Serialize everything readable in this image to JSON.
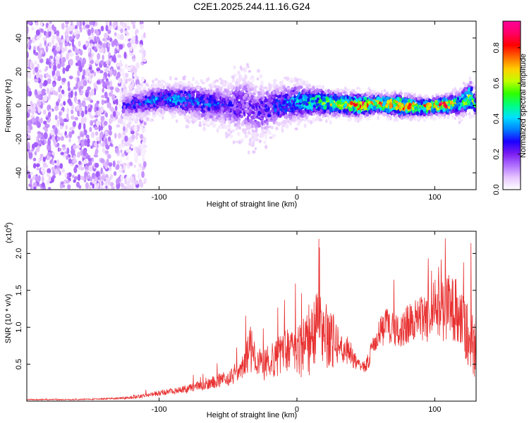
{
  "figure": {
    "title": "C2E1.2025.244.11.16.G24"
  },
  "chart_data": [
    {
      "type": "heatmap",
      "panel": "spectrogram",
      "xlabel": "Height of straight line (km)",
      "ylabel": "Frequency (Hz)",
      "xlim": [
        -196,
        130
      ],
      "ylim": [
        -50,
        50
      ],
      "xticks": [
        -100,
        0,
        100
      ],
      "xtick_labels": [
        "-100",
        "0",
        "100"
      ],
      "yticks": [
        -40,
        -20,
        0,
        20,
        40
      ],
      "ytick_labels": [
        "-40",
        "-20",
        "0",
        "20",
        "40"
      ],
      "colorbar": {
        "label": "Normalized spectral amplitude",
        "range": [
          0,
          0.95
        ],
        "ticks": [
          0,
          0.2,
          0.4,
          0.6,
          0.8
        ],
        "tick_labels": [
          "0.0",
          "0.2",
          "0.4",
          "0.6",
          "0.8"
        ],
        "colors": [
          "#ffffff",
          "#e6c6ff",
          "#b070ff",
          "#7a1cf0",
          "#1a00ff",
          "#0080ff",
          "#00e0ff",
          "#00ff80",
          "#30ff00",
          "#c0ff00",
          "#ffd000",
          "#ff6a00",
          "#ff0000",
          "#ff0066",
          "#ff0099"
        ]
      },
      "noise_region": [
        -196,
        -118
      ],
      "signal_band": [
        {
          "x": -125,
          "center": 0,
          "halfwidth": 5,
          "amp": 0.25
        },
        {
          "x": -110,
          "center": 2,
          "halfwidth": 6,
          "amp": 0.3
        },
        {
          "x": -95,
          "center": 4,
          "halfwidth": 6,
          "amp": 0.35
        },
        {
          "x": -80,
          "center": 3,
          "halfwidth": 7,
          "amp": 0.35
        },
        {
          "x": -65,
          "center": 1,
          "halfwidth": 8,
          "amp": 0.3
        },
        {
          "x": -50,
          "center": 0,
          "halfwidth": 9,
          "amp": 0.25
        },
        {
          "x": -38,
          "center": 0,
          "halfwidth": 14,
          "amp": 0.2
        },
        {
          "x": -30,
          "center": -4,
          "halfwidth": 12,
          "amp": 0.22
        },
        {
          "x": -15,
          "center": 0,
          "halfwidth": 9,
          "amp": 0.3
        },
        {
          "x": 0,
          "center": 2,
          "halfwidth": 8,
          "amp": 0.4
        },
        {
          "x": 15,
          "center": 2,
          "halfwidth": 6,
          "amp": 0.5
        },
        {
          "x": 30,
          "center": 1,
          "halfwidth": 5,
          "amp": 0.6
        },
        {
          "x": 45,
          "center": 0,
          "halfwidth": 5,
          "amp": 0.8
        },
        {
          "x": 60,
          "center": 1,
          "halfwidth": 4,
          "amp": 0.7
        },
        {
          "x": 75,
          "center": 0,
          "halfwidth": 5,
          "amp": 0.75
        },
        {
          "x": 90,
          "center": -1,
          "halfwidth": 4,
          "amp": 0.65
        },
        {
          "x": 105,
          "center": 0,
          "halfwidth": 4,
          "amp": 0.8
        },
        {
          "x": 118,
          "center": 1,
          "halfwidth": 5,
          "amp": 0.55
        },
        {
          "x": 126,
          "center": 5,
          "halfwidth": 7,
          "amp": 0.6
        },
        {
          "x": 130,
          "center": 0,
          "halfwidth": 5,
          "amp": 0.4
        }
      ]
    },
    {
      "type": "line",
      "panel": "snr",
      "xlabel": "Height of straight line (km)",
      "ylabel": "SNR (10 * v/v)",
      "yscale_label": "(x10",
      "yscale_exponent": "4",
      "yscale_suffix": ")",
      "xlim": [
        -196,
        130
      ],
      "ylim": [
        0,
        2.3
      ],
      "xticks": [
        -100,
        0,
        100
      ],
      "xtick_labels": [
        "-100",
        "0",
        "100"
      ],
      "yticks": [
        0.5,
        1.0,
        1.5,
        2.0
      ],
      "ytick_labels": [
        "0.5",
        "1.0",
        "1.5",
        "2.0"
      ],
      "color": "#e83030",
      "series": [
        {
          "name": "SNR",
          "x": [
            -196,
            -180,
            -160,
            -140,
            -125,
            -115,
            -105,
            -95,
            -85,
            -75,
            -65,
            -55,
            -45,
            -38,
            -34,
            -30,
            -25,
            -20,
            -15,
            -10,
            -5,
            0,
            5,
            10,
            15,
            20,
            25,
            30,
            35,
            40,
            45,
            50,
            55,
            60,
            65,
            70,
            75,
            80,
            85,
            90,
            95,
            100,
            105,
            110,
            115,
            120,
            125,
            130
          ],
          "values": [
            0.02,
            0.02,
            0.02,
            0.03,
            0.04,
            0.06,
            0.09,
            0.12,
            0.14,
            0.18,
            0.22,
            0.28,
            0.33,
            0.45,
            0.7,
            0.55,
            0.45,
            0.5,
            0.55,
            0.6,
            0.62,
            0.65,
            0.7,
            0.8,
            0.9,
            0.85,
            0.8,
            0.75,
            0.7,
            0.6,
            0.45,
            0.45,
            0.7,
            0.9,
            1.0,
            0.95,
            0.95,
            1.0,
            1.05,
            1.1,
            1.0,
            1.15,
            1.2,
            1.25,
            1.2,
            1.0,
            0.85,
            0.7
          ],
          "spread": [
            0.01,
            0.01,
            0.01,
            0.01,
            0.02,
            0.03,
            0.04,
            0.05,
            0.06,
            0.08,
            0.1,
            0.12,
            0.15,
            0.25,
            0.45,
            0.3,
            0.25,
            0.3,
            0.35,
            0.4,
            0.42,
            0.45,
            0.55,
            0.65,
            0.7,
            0.6,
            0.5,
            0.35,
            0.25,
            0.2,
            0.12,
            0.12,
            0.2,
            0.25,
            0.3,
            0.3,
            0.3,
            0.35,
            0.35,
            0.4,
            0.4,
            0.45,
            0.55,
            0.6,
            0.55,
            0.5,
            0.55,
            0.6
          ]
        }
      ]
    }
  ]
}
